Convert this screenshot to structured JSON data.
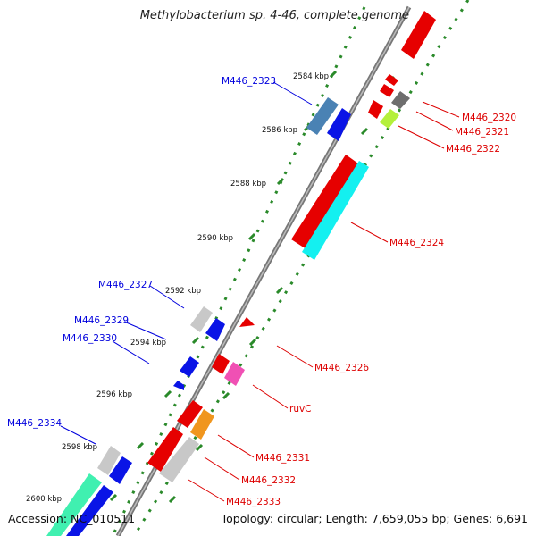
{
  "title": "Methylobacterium sp. 4-46, complete genome",
  "accession": "Accession: NC_010511",
  "topology": "Topology: circular; Length: 7,659,055 bp; Genes: 6,691",
  "ticks": [
    "2584 kbp",
    "2586 kbp",
    "2588 kbp",
    "2590 kbp",
    "2592 kbp",
    "2594 kbp",
    "2596 kbp",
    "2598 kbp",
    "2600 kbp"
  ],
  "left_genes": [
    "M446_2323",
    "M446_2327",
    "M446_2329",
    "M446_2330",
    "M446_2334"
  ],
  "right_genes": [
    "M446_2320",
    "M446_2321",
    "M446_2322",
    "M446_2324",
    "M446_2326",
    "ruvC",
    "M446_2331",
    "M446_2332",
    "M446_2333"
  ],
  "colors": {
    "left_label": "#0000dd",
    "right_label": "#dd0000",
    "backbone": "#888888",
    "dotted_track": "#1f7a1f"
  }
}
